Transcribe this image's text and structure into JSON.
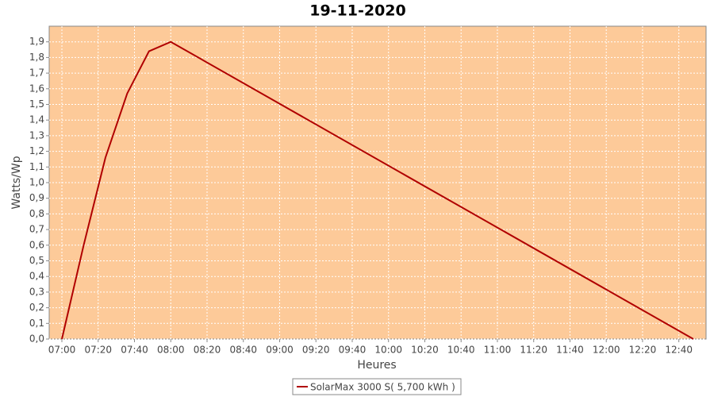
{
  "chart_data": {
    "type": "line",
    "title": "19-11-2020",
    "x_label": "Heures",
    "y_label": "Watts/Wp",
    "x": [
      "07:00",
      "07:12",
      "07:24",
      "07:36",
      "07:48",
      "08:00",
      "12:48"
    ],
    "series": [
      {
        "name": "SolarMax 3000 S( 5,700 kWh )",
        "color": "#b00000",
        "values": [
          0.0,
          0.6,
          1.16,
          1.57,
          1.84,
          1.9,
          0.0
        ]
      }
    ],
    "xlim": [
      "06:53",
      "12:55"
    ],
    "xticks": [
      "07:00",
      "07:20",
      "07:40",
      "08:00",
      "08:20",
      "08:40",
      "09:00",
      "09:20",
      "09:40",
      "10:00",
      "10:20",
      "10:40",
      "11:00",
      "11:20",
      "11:40",
      "12:00",
      "12:20",
      "12:40"
    ],
    "ylim": [
      0,
      2.0
    ],
    "yticks": [
      {
        "value": 0,
        "label": "0,0"
      },
      {
        "value": 0.1,
        "label": "0,1"
      },
      {
        "value": 0.2,
        "label": "0,2"
      },
      {
        "value": 0.3,
        "label": "0,3"
      },
      {
        "value": 0.4,
        "label": "0,4"
      },
      {
        "value": 0.5,
        "label": "0,5"
      },
      {
        "value": 0.6,
        "label": "0,6"
      },
      {
        "value": 0.7,
        "label": "0,7"
      },
      {
        "value": 0.8,
        "label": "0,8"
      },
      {
        "value": 0.9,
        "label": "0,9"
      },
      {
        "value": 1.0,
        "label": "1,0"
      },
      {
        "value": 1.1,
        "label": "1,1"
      },
      {
        "value": 1.2,
        "label": "1,2"
      },
      {
        "value": 1.3,
        "label": "1,3"
      },
      {
        "value": 1.4,
        "label": "1,4"
      },
      {
        "value": 1.5,
        "label": "1,5"
      },
      {
        "value": 1.6,
        "label": "1,6"
      },
      {
        "value": 1.7,
        "label": "1,7"
      },
      {
        "value": 1.8,
        "label": "1,8"
      },
      {
        "value": 1.9,
        "label": "1,9"
      }
    ],
    "grid": true,
    "plot_background": "#fdca99",
    "legend": "bottom"
  }
}
